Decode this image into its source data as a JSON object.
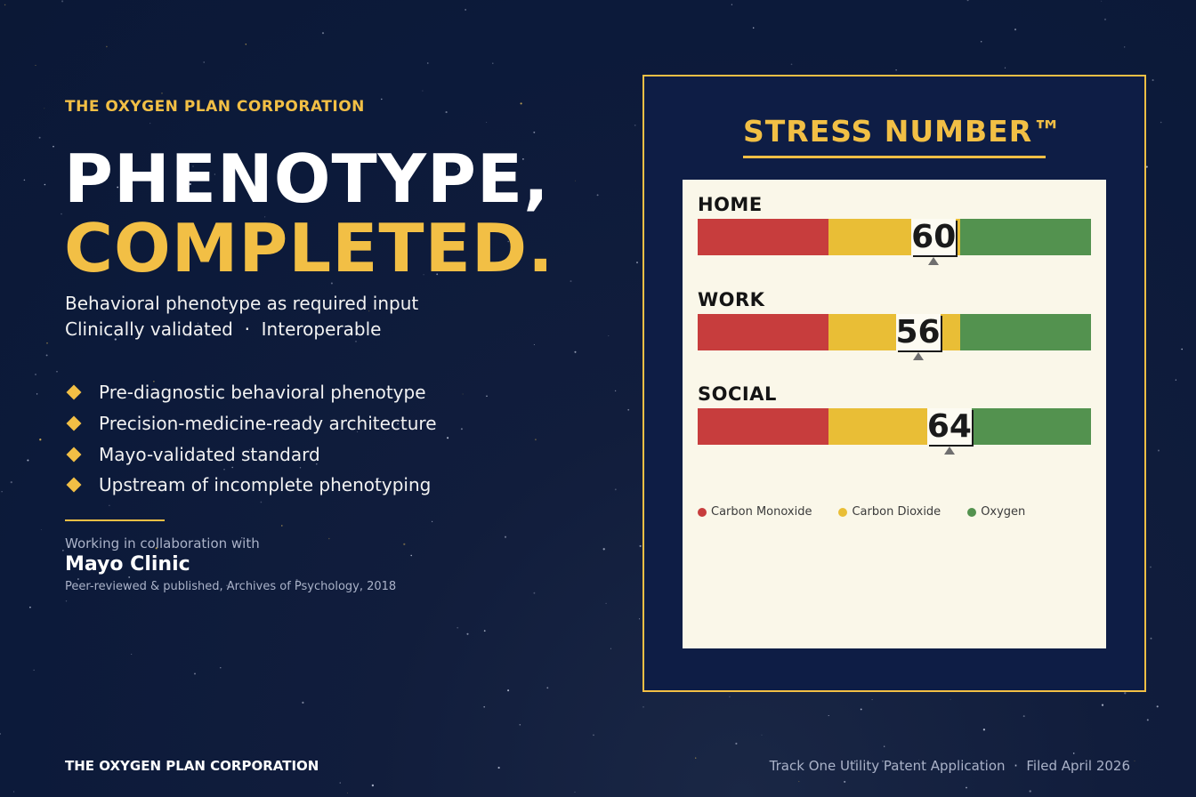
{
  "colors": {
    "accent": "#f2bf45",
    "red": "#c73d3d",
    "yellow": "#e9be36",
    "green": "#53924f",
    "card": "#faf7e9"
  },
  "left": {
    "eyebrow": "THE OXYGEN PLAN CORPORATION",
    "headline_line1": "PHENOTYPE,",
    "headline_line2": "COMPLETED.",
    "subtitle_line1": "Behavioral phenotype as required input",
    "subtitle_line2": "Clinically validated  ·  Interoperable",
    "bullets": [
      "Pre-diagnostic behavioral phenotype",
      "Precision-medicine-ready architecture",
      "Mayo-validated standard",
      "Upstream of incomplete phenotyping"
    ],
    "collab_label": "Working in collaboration with",
    "partner": "Mayo Clinic",
    "citation": "Peer-reviewed & published, Archives of Psychology, 2018"
  },
  "panel": {
    "title": "STRESS NUMBER™",
    "scale": {
      "min": 0,
      "max": 100,
      "red_max": 33.3,
      "yellow_max": 66.7
    },
    "rows": [
      {
        "label": "HOME",
        "value": 60
      },
      {
        "label": "WORK",
        "value": 56
      },
      {
        "label": "SOCIAL",
        "value": 64
      }
    ],
    "legend": [
      {
        "label": "Carbon Monoxide",
        "color": "#c73d3d"
      },
      {
        "label": "Carbon Dioxide",
        "color": "#e9be36"
      },
      {
        "label": "Oxygen",
        "color": "#53924f"
      }
    ]
  },
  "footer": {
    "left": "THE OXYGEN PLAN CORPORATION",
    "right": "Track One Utility Patent Application  ·  Filed April 2026"
  }
}
